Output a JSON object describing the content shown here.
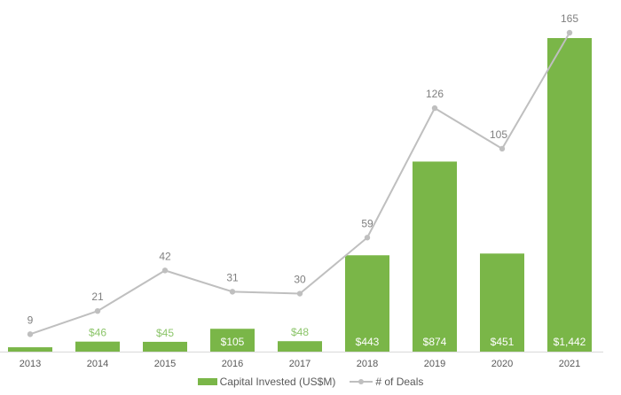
{
  "chart_data": {
    "type": "bar+line",
    "categories": [
      "2013",
      "2014",
      "2015",
      "2016",
      "2017",
      "2018",
      "2019",
      "2020",
      "2021"
    ],
    "series": [
      {
        "name": "Capital Invested (US$M)",
        "type": "bar",
        "color": "#7ab648",
        "values": [
          20,
          46,
          45,
          105,
          48,
          443,
          874,
          451,
          1442
        ],
        "labels": [
          "",
          "$46",
          "$45",
          "$105",
          "$48",
          "$443",
          "$874",
          "$451",
          "$1,442"
        ],
        "label_inside": [
          false,
          false,
          false,
          true,
          false,
          true,
          true,
          true,
          true
        ]
      },
      {
        "name": "# of Deals",
        "type": "line",
        "color": "#bfbfbf",
        "values": [
          9,
          21,
          42,
          31,
          30,
          59,
          126,
          105,
          165
        ],
        "labels": [
          "9",
          "21",
          "42",
          "31",
          "30",
          "59",
          "126",
          "105",
          "165"
        ]
      }
    ],
    "title": "",
    "xlabel": "",
    "ylabel": "",
    "grid": false,
    "legend_position": "bottom"
  },
  "legend": {
    "bar_label": "Capital Invested (US$M)",
    "line_label": "# of Deals"
  }
}
